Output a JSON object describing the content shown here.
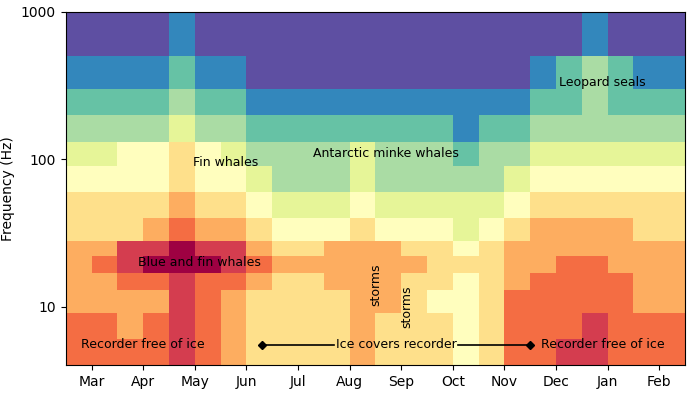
{
  "chart_data": {
    "type": "heatmap",
    "ylabel": "Frequency (Hz)",
    "categories": [
      "Mar",
      "Apr",
      "May",
      "Jun",
      "Jul",
      "Aug",
      "Sep",
      "Oct",
      "Nov",
      "Dec",
      "Jan",
      "Feb"
    ],
    "xlim": [
      -0.5,
      11.5
    ],
    "ylim": [
      4,
      1000
    ],
    "yticks": [
      10,
      100,
      1000
    ],
    "log": "y",
    "color": "Spectral_r",
    "time_edges": [
      -0.5,
      0.0,
      0.5,
      1.0,
      1.5,
      2.0,
      2.5,
      3.0,
      3.5,
      4.0,
      4.5,
      5.0,
      5.5,
      6.0,
      6.5,
      7.0,
      7.5,
      8.0,
      8.5,
      9.0,
      9.5,
      10.0,
      10.5,
      11.0,
      11.5
    ],
    "frequency_edges": [
      4,
      6,
      9,
      13,
      17,
      22,
      28,
      40,
      60,
      90,
      130,
      200,
      300,
      500,
      1000
    ],
    "cells": [
      [
        8,
        8,
        8,
        8,
        9,
        8,
        7,
        6,
        6,
        6,
        6,
        7,
        6,
        6,
        6,
        5,
        6,
        8,
        8,
        9,
        9,
        8,
        8,
        8
      ],
      [
        8,
        8,
        7,
        8,
        9,
        8,
        7,
        6,
        6,
        6,
        6,
        7,
        6,
        6,
        6,
        5,
        6,
        8,
        8,
        8,
        9,
        8,
        8,
        8
      ],
      [
        7,
        7,
        7,
        7,
        9,
        8,
        7,
        6,
        6,
        6,
        6,
        7,
        7,
        6,
        5,
        5,
        6,
        8,
        8,
        8,
        8,
        8,
        7,
        7
      ],
      [
        7,
        7,
        8,
        8,
        9,
        8,
        8,
        7,
        6,
        6,
        7,
        7,
        7,
        6,
        6,
        5,
        6,
        7,
        8,
        8,
        8,
        8,
        7,
        7
      ],
      [
        7,
        8,
        9,
        10,
        10,
        10,
        9,
        8,
        7,
        7,
        7,
        7,
        7,
        7,
        6,
        6,
        6,
        7,
        7,
        8,
        8,
        7,
        7,
        7
      ],
      [
        7,
        7,
        9,
        9,
        10,
        9,
        9,
        7,
        6,
        6,
        7,
        7,
        7,
        6,
        6,
        5,
        6,
        7,
        7,
        7,
        7,
        7,
        7,
        7
      ],
      [
        6,
        6,
        6,
        7,
        8,
        7,
        7,
        6,
        5,
        5,
        5,
        6,
        5,
        5,
        5,
        4,
        5,
        6,
        7,
        7,
        7,
        7,
        6,
        6
      ],
      [
        6,
        6,
        6,
        6,
        7,
        6,
        6,
        5,
        4,
        4,
        4,
        5,
        4,
        4,
        4,
        4,
        4,
        5,
        6,
        6,
        6,
        6,
        6,
        6
      ],
      [
        5,
        5,
        5,
        5,
        6,
        5,
        5,
        4,
        3,
        3,
        3,
        4,
        3,
        3,
        3,
        3,
        3,
        4,
        5,
        5,
        5,
        5,
        5,
        5
      ],
      [
        4,
        4,
        5,
        5,
        6,
        5,
        4,
        3,
        3,
        3,
        3,
        4,
        3,
        3,
        3,
        2,
        3,
        3,
        4,
        4,
        4,
        4,
        4,
        4
      ],
      [
        3,
        3,
        3,
        3,
        4,
        3,
        3,
        2,
        2,
        2,
        2,
        2,
        2,
        2,
        2,
        1,
        2,
        2,
        3,
        3,
        3,
        3,
        3,
        3
      ],
      [
        2,
        2,
        2,
        2,
        3,
        2,
        2,
        1,
        1,
        1,
        1,
        1,
        1,
        1,
        1,
        1,
        1,
        1,
        2,
        2,
        3,
        2,
        2,
        2
      ],
      [
        1,
        1,
        1,
        1,
        2,
        1,
        1,
        0,
        0,
        0,
        0,
        0,
        0,
        0,
        0,
        0,
        0,
        0,
        1,
        2,
        3,
        2,
        1,
        1
      ],
      [
        0,
        0,
        0,
        0,
        1,
        0,
        0,
        0,
        0,
        0,
        0,
        0,
        0,
        0,
        0,
        0,
        0,
        0,
        0,
        0,
        1,
        0,
        0,
        0
      ]
    ],
    "annotations": [
      "Fin whales",
      "Antarctic minke whales",
      "Leopard seals",
      "Blue and fin whales",
      "storms",
      "storms",
      "Recorder free of ice",
      "Ice covers recorder",
      "Recorder free of ice"
    ]
  }
}
